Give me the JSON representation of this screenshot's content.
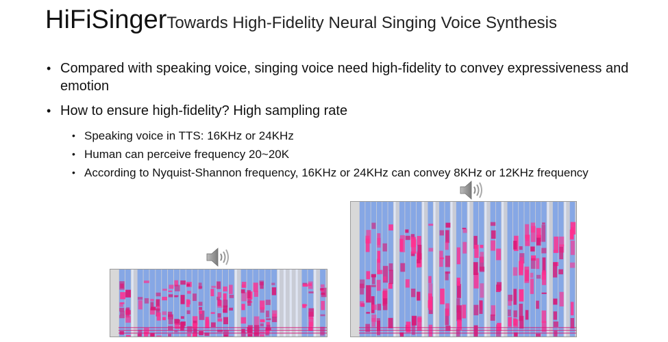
{
  "slide": {
    "title_main": "HiFiSinger",
    "title_sub": "Towards High-Fidelity Neural Singing Voice Synthesis",
    "bullets": [
      "Compared with speaking voice, singing voice need high-fidelity to convey expressiveness and emotion",
      "How to ensure high-fidelity? High sampling rate"
    ],
    "sub_bullets": [
      "Speaking voice in TTS: 16KHz or 24KHz",
      "Human can perceive frequency 20~20K",
      "According to Nyquist-Shannon frequency, 16KHz or 24KHz can convey 8KHz or 12KHz frequency"
    ]
  },
  "media": {
    "speaker_icon": "speaker-icon",
    "spectrogram_colors": {
      "low": "#e8f0ff",
      "mid": "#7aa0e8",
      "high": "#d81a78",
      "peak": "#ff3090"
    }
  }
}
